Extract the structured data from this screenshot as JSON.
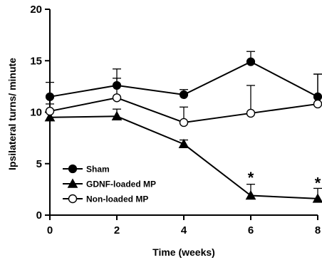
{
  "chart_data": {
    "type": "line",
    "title": "",
    "xlabel": "Time (weeks)",
    "ylabel": "Ipsilateral turns/ minute",
    "xlim": [
      0,
      8
    ],
    "ylim": [
      0,
      20
    ],
    "x_ticks": [
      "0",
      "2",
      "4",
      "6",
      "8"
    ],
    "y_ticks": [
      "0",
      "5",
      "10",
      "15",
      "20"
    ],
    "grid": false,
    "legend_position": "bottom-left",
    "series": [
      {
        "name": "Sham",
        "marker": "filled-circle",
        "x": [
          0,
          2,
          4,
          6,
          8
        ],
        "y": [
          11.5,
          12.6,
          11.7,
          14.9,
          11.5
        ],
        "error_up": [
          1.4,
          1.6,
          0.5,
          1.0,
          2.2
        ]
      },
      {
        "name": "GDNF-loaded MP",
        "marker": "filled-triangle",
        "x": [
          0,
          2,
          4,
          6,
          8
        ],
        "y": [
          9.5,
          9.6,
          6.9,
          1.9,
          1.6
        ],
        "error_up": [
          0.6,
          0.7,
          0.4,
          1.1,
          1.0
        ]
      },
      {
        "name": "Non-loaded MP",
        "marker": "open-circle",
        "x": [
          0,
          2,
          4,
          6,
          8
        ],
        "y": [
          10.1,
          11.4,
          9.0,
          9.9,
          10.8
        ],
        "error_up": [
          0.7,
          1.9,
          1.5,
          2.7,
          2.9
        ]
      }
    ],
    "annotations": [
      {
        "text": "*",
        "x": 6,
        "y": 3.8
      },
      {
        "text": "*",
        "x": 8,
        "y": 3.3
      }
    ]
  }
}
